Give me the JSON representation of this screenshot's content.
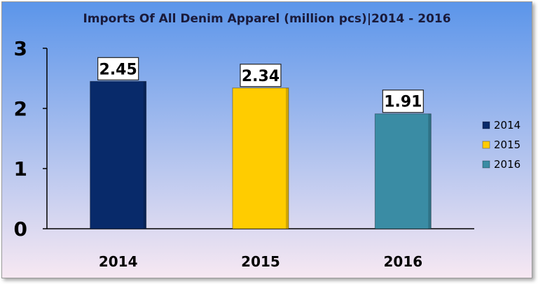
{
  "chart_data": {
    "type": "bar",
    "title": "Imports Of All Denim Apparel (million pcs)|2014 - 2016",
    "categories": [
      "2014",
      "2015",
      "2016"
    ],
    "values": [
      2.45,
      2.34,
      1.91
    ],
    "data_labels": [
      "2.45",
      "2.34",
      "1.91"
    ],
    "bar_colors": [
      "#082a6a",
      "#ffcc00",
      "#3a8ca4"
    ],
    "ylim": [
      0,
      3
    ],
    "yticks": [
      "0",
      "1",
      "2",
      "3"
    ],
    "xlabel": "",
    "ylabel": "",
    "legend": {
      "placement": "right",
      "entries": [
        {
          "label": "2014",
          "color": "#082a6a"
        },
        {
          "label": "2015",
          "color": "#ffcc00"
        },
        {
          "label": "2016",
          "color": "#3a8ca4"
        }
      ]
    },
    "grid": false,
    "background": {
      "top": "#5b95ea",
      "bottom": "#f7e8f2"
    }
  }
}
